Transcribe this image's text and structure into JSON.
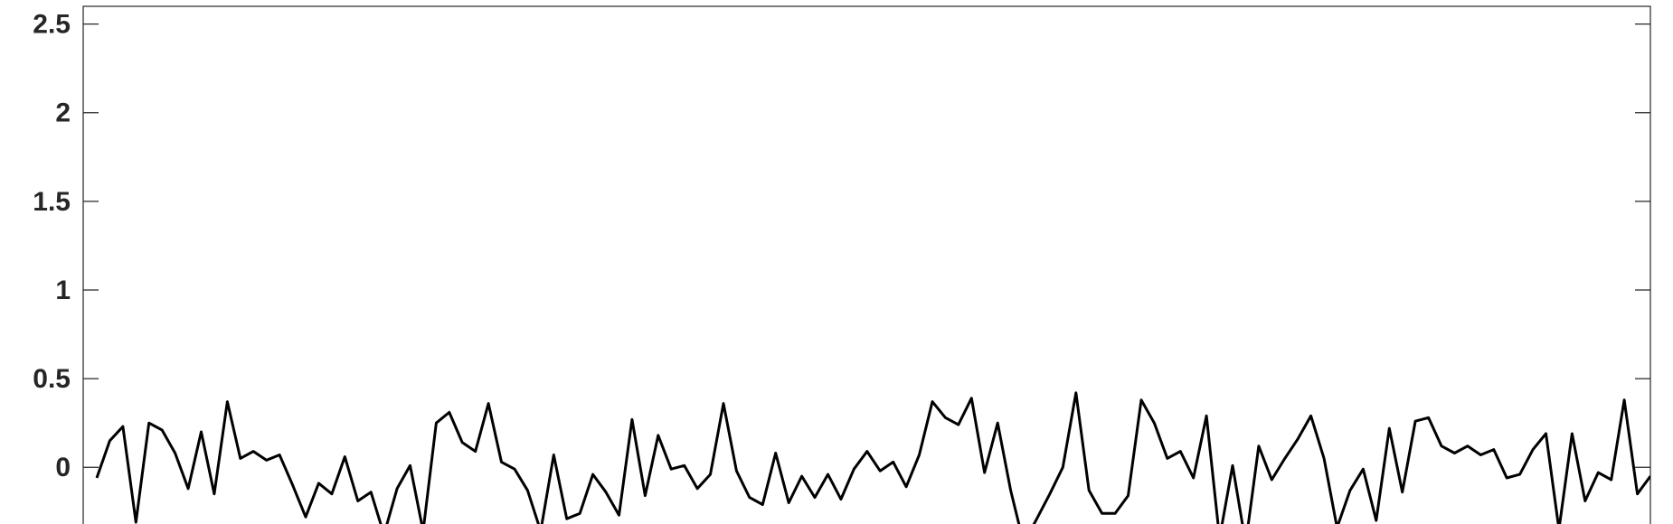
{
  "chart_data": {
    "type": "line",
    "title": "",
    "xlabel": "",
    "ylabel": "",
    "ylim": [
      -0.33,
      2.6
    ],
    "yticks": [
      "0",
      "0.5",
      "1",
      "1.5",
      "2",
      "2.5"
    ],
    "ytick_values": [
      0,
      0.5,
      1,
      1.5,
      2,
      2.5
    ],
    "grid": false,
    "colors": {
      "line": "#000000",
      "axes": "#262626"
    },
    "series": [
      {
        "values": [
          -0.06,
          0.15,
          0.23,
          -0.31,
          0.25,
          0.21,
          0.08,
          -0.12,
          0.2,
          -0.15,
          0.37,
          0.05,
          0.09,
          0.04,
          0.07,
          -0.1,
          -0.28,
          -0.09,
          -0.15,
          0.06,
          -0.19,
          -0.14,
          -0.38,
          -0.12,
          0.01,
          -0.36,
          0.25,
          0.31,
          0.14,
          0.09,
          0.36,
          0.03,
          -0.01,
          -0.13,
          -0.36,
          0.07,
          -0.29,
          -0.26,
          -0.04,
          -0.14,
          -0.27,
          0.27,
          -0.16,
          0.18,
          -0.01,
          0.01,
          -0.12,
          -0.04,
          0.36,
          -0.02,
          -0.17,
          -0.21,
          0.08,
          -0.2,
          -0.05,
          -0.17,
          -0.04,
          -0.18,
          -0.01,
          0.09,
          -0.02,
          0.03,
          -0.11,
          0.07,
          0.37,
          0.28,
          0.24,
          0.39,
          -0.03,
          0.25,
          -0.13,
          -0.43,
          -0.29,
          -0.15,
          0.0,
          0.42,
          -0.13,
          -0.26,
          -0.26,
          -0.16,
          0.38,
          0.25,
          0.05,
          0.09,
          -0.06,
          0.29,
          -0.4,
          0.01,
          -0.43,
          0.12,
          -0.07,
          0.05,
          0.16,
          0.29,
          0.05,
          -0.34,
          -0.13,
          -0.01,
          -0.3,
          0.22,
          -0.14,
          0.26,
          0.28,
          0.12,
          0.08,
          0.12,
          0.07,
          0.1,
          -0.06,
          -0.04,
          0.1,
          0.19,
          -0.35,
          0.19,
          -0.19,
          -0.03,
          -0.07,
          0.38,
          -0.15,
          -0.05
        ]
      }
    ]
  }
}
